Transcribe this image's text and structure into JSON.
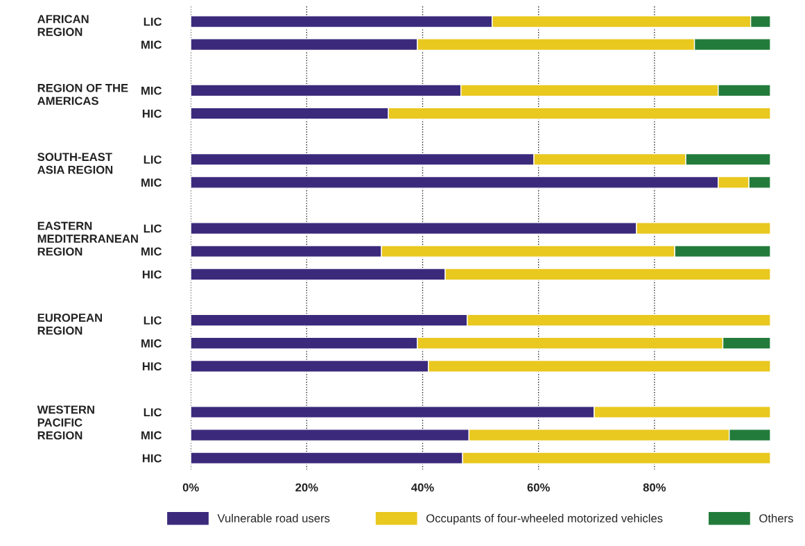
{
  "chart_data": {
    "type": "bar",
    "orientation": "horizontal",
    "stacked": true,
    "categories": [
      "LIC",
      "MIC",
      null,
      "MIC",
      "HIC",
      null,
      "LIC",
      "MIC",
      null,
      "LIC",
      "MIC",
      "HIC",
      null,
      "LIC",
      "MIC",
      "HIC",
      null,
      "LIC",
      "MIC",
      "HIC"
    ],
    "series": [
      {
        "name": "Vulnerable road users",
        "color": "#3b2a7c",
        "values": [
          52.0,
          39.1,
          null,
          46.6,
          34.1,
          null,
          59.2,
          91.0,
          null,
          76.9,
          32.9,
          43.9,
          null,
          47.7,
          39.1,
          41.0,
          null,
          69.6,
          48.0,
          46.9
        ]
      },
      {
        "name": "Occupants of four-wheeled motorized vehicles",
        "color": "#e9c81f",
        "values": [
          44.6,
          47.8,
          null,
          44.4,
          65.9,
          null,
          26.2,
          5.3,
          null,
          23.1,
          50.6,
          56.1,
          null,
          52.3,
          52.7,
          59.0,
          null,
          30.4,
          44.9,
          53.1
        ]
      },
      {
        "name": "Others",
        "color": "#237b3b",
        "values": [
          3.4,
          13.1,
          null,
          9.0,
          null,
          null,
          14.6,
          3.7,
          null,
          null,
          16.5,
          null,
          null,
          null,
          8.2,
          null,
          null,
          null,
          7.1,
          null
        ]
      }
    ],
    "annotations": [
      "AFRICAN\nREGION",
      "REGION OF THE\nAMERICAS",
      "SOUTH-EAST\nASIA REGION",
      "EASTERN\nMEDITERRANEAN\nREGION",
      "EUROPEAN\nREGION",
      "WESTERN\nPACIFIC\nREGION"
    ],
    "xlim": [
      0,
      100
    ],
    "xticks": [
      {
        "value": 0,
        "label": "0%"
      },
      {
        "value": 20,
        "label": "20%"
      },
      {
        "value": 40,
        "label": "40%"
      },
      {
        "value": 60,
        "label": "60%"
      },
      {
        "value": 80,
        "label": "80%"
      }
    ],
    "grid": "x",
    "legend": "bottom"
  }
}
